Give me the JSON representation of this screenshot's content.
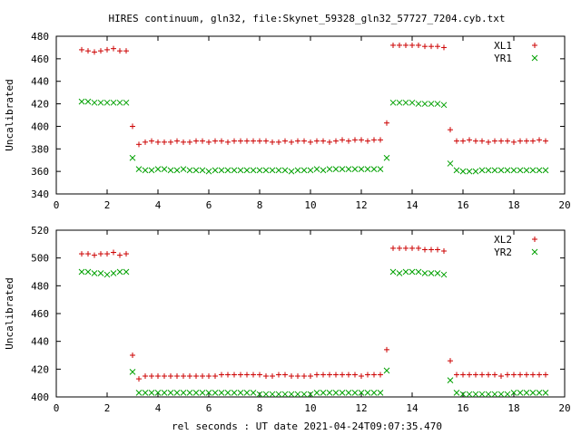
{
  "title": "HIRES continuum, gln32, file:Skynet_59328_gln32_57727_7204.cyb.txt",
  "xlabel": "rel seconds : UT date 2021-04-24T09:07:35.470",
  "chart_data": [
    {
      "type": "scatter",
      "ylabel": "Uncalibrated",
      "xlim": [
        0,
        20
      ],
      "ylim": [
        340,
        480
      ],
      "xticks": [
        0,
        2,
        4,
        6,
        8,
        10,
        12,
        14,
        16,
        18,
        20
      ],
      "yticks": [
        340,
        360,
        380,
        400,
        420,
        440,
        460,
        480
      ],
      "legend_position": "top-right",
      "series": [
        {
          "name": "XL1",
          "marker": "+",
          "color": "#cc0000",
          "x": [
            1.0,
            1.25,
            1.5,
            1.75,
            2.0,
            2.25,
            2.5,
            2.75,
            3.0,
            3.25,
            3.5,
            3.75,
            4.0,
            4.25,
            4.5,
            4.75,
            5.0,
            5.25,
            5.5,
            5.75,
            6.0,
            6.25,
            6.5,
            6.75,
            7.0,
            7.25,
            7.5,
            7.75,
            8.0,
            8.25,
            8.5,
            8.75,
            9.0,
            9.25,
            9.5,
            9.75,
            10.0,
            10.25,
            10.5,
            10.75,
            11.0,
            11.25,
            11.5,
            11.75,
            12.0,
            12.25,
            12.5,
            12.75,
            13.0,
            13.25,
            13.5,
            13.75,
            14.0,
            14.25,
            14.5,
            14.75,
            15.0,
            15.25,
            15.5,
            15.75,
            16.0,
            16.25,
            16.5,
            16.75,
            17.0,
            17.25,
            17.5,
            17.75,
            18.0,
            18.25,
            18.5,
            18.75,
            19.0,
            19.25
          ],
          "y": [
            468,
            467,
            466,
            467,
            468,
            469,
            467,
            467,
            400,
            384,
            386,
            387,
            386,
            386,
            386,
            387,
            386,
            386,
            387,
            387,
            386,
            387,
            387,
            386,
            387,
            387,
            387,
            387,
            387,
            387,
            386,
            386,
            387,
            386,
            387,
            387,
            386,
            387,
            387,
            386,
            387,
            388,
            387,
            388,
            388,
            387,
            388,
            388,
            403,
            472,
            472,
            472,
            472,
            472,
            471,
            471,
            471,
            470,
            397,
            387,
            387,
            388,
            387,
            387,
            386,
            387,
            387,
            387,
            386,
            387,
            387,
            387,
            388,
            387
          ]
        },
        {
          "name": "YR1",
          "marker": "x",
          "color": "#00a000",
          "x": [
            1.0,
            1.25,
            1.5,
            1.75,
            2.0,
            2.25,
            2.5,
            2.75,
            3.0,
            3.25,
            3.5,
            3.75,
            4.0,
            4.25,
            4.5,
            4.75,
            5.0,
            5.25,
            5.5,
            5.75,
            6.0,
            6.25,
            6.5,
            6.75,
            7.0,
            7.25,
            7.5,
            7.75,
            8.0,
            8.25,
            8.5,
            8.75,
            9.0,
            9.25,
            9.5,
            9.75,
            10.0,
            10.25,
            10.5,
            10.75,
            11.0,
            11.25,
            11.5,
            11.75,
            12.0,
            12.25,
            12.5,
            12.75,
            13.0,
            13.25,
            13.5,
            13.75,
            14.0,
            14.25,
            14.5,
            14.75,
            15.0,
            15.25,
            15.5,
            15.75,
            16.0,
            16.25,
            16.5,
            16.75,
            17.0,
            17.25,
            17.5,
            17.75,
            18.0,
            18.25,
            18.5,
            18.75,
            19.0,
            19.25
          ],
          "y": [
            422,
            422,
            421,
            421,
            421,
            421,
            421,
            421,
            372,
            362,
            361,
            361,
            362,
            362,
            361,
            361,
            362,
            361,
            361,
            361,
            360,
            361,
            361,
            361,
            361,
            361,
            361,
            361,
            361,
            361,
            361,
            361,
            361,
            360,
            361,
            361,
            361,
            362,
            361,
            362,
            362,
            362,
            362,
            362,
            362,
            362,
            362,
            362,
            372,
            421,
            421,
            421,
            421,
            420,
            420,
            420,
            420,
            419,
            367,
            361,
            360,
            360,
            360,
            361,
            361,
            361,
            361,
            361,
            361,
            361,
            361,
            361,
            361,
            361
          ]
        }
      ]
    },
    {
      "type": "scatter",
      "ylabel": "Uncalibrated",
      "xlim": [
        0,
        20
      ],
      "ylim": [
        400,
        520
      ],
      "xticks": [
        0,
        2,
        4,
        6,
        8,
        10,
        12,
        14,
        16,
        18,
        20
      ],
      "yticks": [
        400,
        420,
        440,
        460,
        480,
        500,
        520
      ],
      "legend_position": "top-right",
      "series": [
        {
          "name": "XL2",
          "marker": "+",
          "color": "#cc0000",
          "x": [
            1.0,
            1.25,
            1.5,
            1.75,
            2.0,
            2.25,
            2.5,
            2.75,
            3.0,
            3.25,
            3.5,
            3.75,
            4.0,
            4.25,
            4.5,
            4.75,
            5.0,
            5.25,
            5.5,
            5.75,
            6.0,
            6.25,
            6.5,
            6.75,
            7.0,
            7.25,
            7.5,
            7.75,
            8.0,
            8.25,
            8.5,
            8.75,
            9.0,
            9.25,
            9.5,
            9.75,
            10.0,
            10.25,
            10.5,
            10.75,
            11.0,
            11.25,
            11.5,
            11.75,
            12.0,
            12.25,
            12.5,
            12.75,
            13.0,
            13.25,
            13.5,
            13.75,
            14.0,
            14.25,
            14.5,
            14.75,
            15.0,
            15.25,
            15.5,
            15.75,
            16.0,
            16.25,
            16.5,
            16.75,
            17.0,
            17.25,
            17.5,
            17.75,
            18.0,
            18.25,
            18.5,
            18.75,
            19.0,
            19.25
          ],
          "y": [
            503,
            503,
            502,
            503,
            503,
            504,
            502,
            503,
            430,
            413,
            415,
            415,
            415,
            415,
            415,
            415,
            415,
            415,
            415,
            415,
            415,
            415,
            416,
            416,
            416,
            416,
            416,
            416,
            416,
            415,
            415,
            416,
            416,
            415,
            415,
            415,
            415,
            416,
            416,
            416,
            416,
            416,
            416,
            416,
            415,
            416,
            416,
            416,
            434,
            507,
            507,
            507,
            507,
            507,
            506,
            506,
            506,
            505,
            426,
            416,
            416,
            416,
            416,
            416,
            416,
            416,
            415,
            416,
            416,
            416,
            416,
            416,
            416,
            416
          ]
        },
        {
          "name": "YR2",
          "marker": "x",
          "color": "#00a000",
          "x": [
            1.0,
            1.25,
            1.5,
            1.75,
            2.0,
            2.25,
            2.5,
            2.75,
            3.0,
            3.25,
            3.5,
            3.75,
            4.0,
            4.25,
            4.5,
            4.75,
            5.0,
            5.25,
            5.5,
            5.75,
            6.0,
            6.25,
            6.5,
            6.75,
            7.0,
            7.25,
            7.5,
            7.75,
            8.0,
            8.25,
            8.5,
            8.75,
            9.0,
            9.25,
            9.5,
            9.75,
            10.0,
            10.25,
            10.5,
            10.75,
            11.0,
            11.25,
            11.5,
            11.75,
            12.0,
            12.25,
            12.5,
            12.75,
            13.0,
            13.25,
            13.5,
            13.75,
            14.0,
            14.25,
            14.5,
            14.75,
            15.0,
            15.25,
            15.5,
            15.75,
            16.0,
            16.25,
            16.5,
            16.75,
            17.0,
            17.25,
            17.5,
            17.75,
            18.0,
            18.25,
            18.5,
            18.75,
            19.0,
            19.25
          ],
          "y": [
            490,
            490,
            489,
            489,
            488,
            489,
            490,
            490,
            418,
            403,
            403,
            403,
            403,
            403,
            403,
            403,
            403,
            403,
            403,
            403,
            403,
            403,
            403,
            403,
            403,
            403,
            403,
            403,
            402,
            402,
            402,
            402,
            402,
            402,
            402,
            402,
            402,
            403,
            403,
            403,
            403,
            403,
            403,
            403,
            403,
            403,
            403,
            403,
            419,
            490,
            489,
            490,
            490,
            490,
            489,
            489,
            489,
            488,
            412,
            403,
            402,
            402,
            402,
            402,
            402,
            402,
            402,
            402,
            403,
            403,
            403,
            403,
            403,
            403
          ]
        }
      ]
    }
  ]
}
